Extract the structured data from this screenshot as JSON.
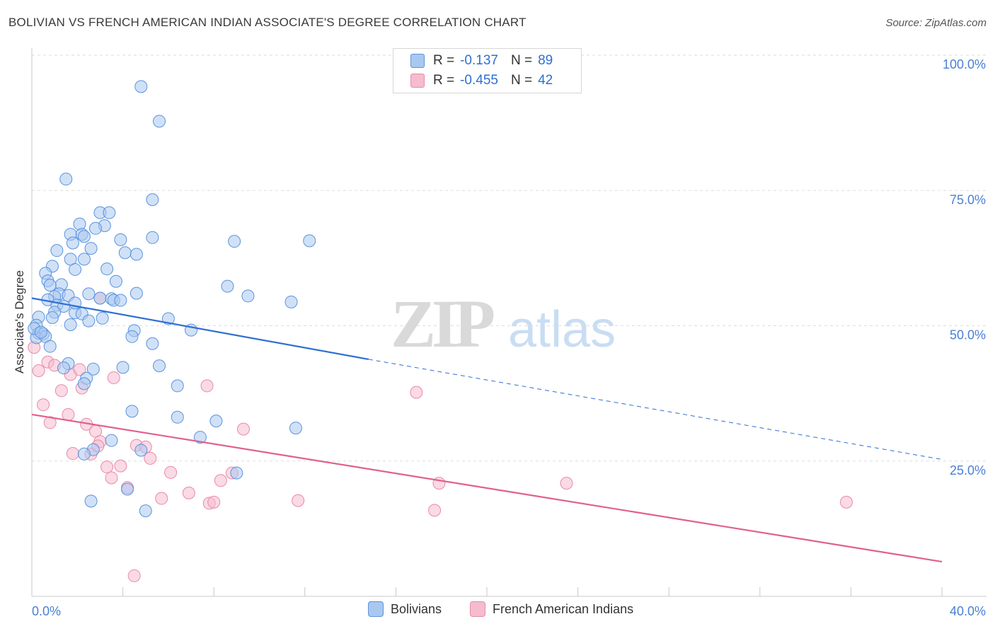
{
  "header": {
    "title": "BOLIVIAN VS FRENCH AMERICAN INDIAN ASSOCIATE'S DEGREE CORRELATION CHART",
    "source": "Source: ZipAtlas.com"
  },
  "watermark": {
    "zip": "ZIP",
    "atlas": "atlas"
  },
  "legend_top": {
    "rows": [
      {
        "r_label": "R =",
        "r_value": "-0.137",
        "n_label": "N =",
        "n_value": "89"
      },
      {
        "r_label": "R =",
        "r_value": "-0.455",
        "n_label": "N =",
        "n_value": "42"
      }
    ]
  },
  "legend_bottom": {
    "items": [
      "Bolivians",
      "French American Indians"
    ]
  },
  "colors": {
    "blue_fill": "#a9c8f0",
    "blue_stroke": "#5b93dd",
    "blue_line": "#2f6fd0",
    "pink_fill": "#f5bccd",
    "pink_stroke": "#e88aa8",
    "pink_line": "#e0608f",
    "tick_label": "#4a7fd4",
    "grid": "#dddddd"
  },
  "chart_data": {
    "type": "scatter",
    "title": "BOLIVIAN VS FRENCH AMERICAN INDIAN ASSOCIATE'S DEGREE CORRELATION CHART",
    "xlabel": "",
    "ylabel": "Associate's Degree",
    "xlim": [
      0,
      40
    ],
    "ylim": [
      0,
      100
    ],
    "x_tick_labels": [
      "0.0%",
      "40.0%"
    ],
    "y_ticks": [
      25,
      50,
      75,
      100
    ],
    "y_tick_labels": [
      "25.0%",
      "50.0%",
      "75.0%",
      "100.0%"
    ],
    "grid": true,
    "legend_position": "top-center",
    "series": [
      {
        "name": "Bolivians",
        "color": "#5b93dd",
        "trend": {
          "x": [
            0,
            14.8
          ],
          "y": [
            55.1,
            43.8
          ],
          "dashed_extension_to": [
            40,
            25.3
          ]
        },
        "points": [
          [
            4.8,
            94.2
          ],
          [
            5.6,
            87.8
          ],
          [
            1.5,
            77.1
          ],
          [
            5.3,
            73.3
          ],
          [
            3.0,
            70.9
          ],
          [
            3.4,
            70.9
          ],
          [
            2.1,
            68.8
          ],
          [
            3.2,
            68.5
          ],
          [
            2.8,
            68.0
          ],
          [
            1.7,
            66.9
          ],
          [
            2.2,
            66.9
          ],
          [
            2.3,
            66.5
          ],
          [
            3.9,
            65.9
          ],
          [
            5.3,
            66.3
          ],
          [
            8.9,
            65.6
          ],
          [
            12.2,
            65.7
          ],
          [
            1.8,
            65.3
          ],
          [
            2.6,
            64.3
          ],
          [
            1.1,
            63.9
          ],
          [
            4.1,
            63.5
          ],
          [
            4.6,
            63.2
          ],
          [
            1.7,
            62.3
          ],
          [
            2.3,
            62.3
          ],
          [
            0.9,
            61.0
          ],
          [
            1.9,
            60.4
          ],
          [
            3.3,
            60.5
          ],
          [
            0.6,
            59.7
          ],
          [
            0.7,
            58.3
          ],
          [
            3.7,
            58.2
          ],
          [
            8.6,
            57.3
          ],
          [
            1.3,
            57.6
          ],
          [
            0.8,
            57.5
          ],
          [
            1.2,
            55.9
          ],
          [
            1.0,
            55.4
          ],
          [
            1.6,
            55.6
          ],
          [
            2.5,
            55.9
          ],
          [
            4.6,
            56.0
          ],
          [
            9.5,
            55.5
          ],
          [
            11.4,
            54.4
          ],
          [
            3.0,
            55.1
          ],
          [
            3.5,
            55.0
          ],
          [
            3.6,
            54.7
          ],
          [
            3.9,
            54.7
          ],
          [
            0.7,
            54.8
          ],
          [
            1.1,
            53.8
          ],
          [
            1.4,
            53.6
          ],
          [
            1.0,
            52.5
          ],
          [
            1.9,
            52.4
          ],
          [
            2.2,
            52.2
          ],
          [
            0.3,
            51.6
          ],
          [
            0.9,
            51.5
          ],
          [
            3.1,
            51.4
          ],
          [
            6.0,
            51.3
          ],
          [
            2.5,
            50.9
          ],
          [
            0.2,
            50.1
          ],
          [
            1.7,
            50.2
          ],
          [
            4.5,
            49.1
          ],
          [
            7.0,
            49.2
          ],
          [
            0.3,
            48.6
          ],
          [
            0.5,
            48.5
          ],
          [
            0.2,
            47.8
          ],
          [
            0.6,
            48.0
          ],
          [
            4.4,
            48.0
          ],
          [
            5.3,
            46.7
          ],
          [
            0.8,
            46.2
          ],
          [
            1.6,
            43.0
          ],
          [
            1.4,
            42.2
          ],
          [
            2.7,
            42.0
          ],
          [
            4.0,
            42.3
          ],
          [
            5.6,
            42.6
          ],
          [
            2.4,
            40.3
          ],
          [
            2.3,
            39.3
          ],
          [
            6.4,
            38.9
          ],
          [
            4.4,
            34.2
          ],
          [
            6.4,
            33.1
          ],
          [
            8.1,
            32.4
          ],
          [
            11.6,
            31.1
          ],
          [
            7.4,
            29.4
          ],
          [
            3.5,
            28.8
          ],
          [
            2.7,
            27.1
          ],
          [
            4.8,
            27.0
          ],
          [
            2.3,
            26.3
          ],
          [
            9.0,
            22.8
          ],
          [
            4.2,
            19.8
          ],
          [
            2.6,
            17.6
          ],
          [
            5.0,
            15.8
          ],
          [
            0.1,
            49.5
          ],
          [
            0.4,
            48.8
          ],
          [
            1.9,
            54.2
          ]
        ]
      },
      {
        "name": "French American Indians",
        "color": "#e88aa8",
        "trend": {
          "x": [
            0,
            40
          ],
          "y": [
            33.6,
            6.4
          ]
        },
        "points": [
          [
            0.1,
            46.0
          ],
          [
            0.3,
            41.7
          ],
          [
            0.7,
            43.3
          ],
          [
            1.0,
            42.7
          ],
          [
            1.7,
            41.0
          ],
          [
            2.1,
            41.9
          ],
          [
            1.3,
            38.0
          ],
          [
            2.2,
            38.5
          ],
          [
            3.6,
            40.4
          ],
          [
            7.7,
            38.9
          ],
          [
            16.9,
            37.7
          ],
          [
            0.5,
            35.4
          ],
          [
            1.6,
            33.6
          ],
          [
            2.4,
            31.8
          ],
          [
            0.8,
            32.1
          ],
          [
            2.8,
            30.5
          ],
          [
            9.3,
            30.9
          ],
          [
            3.0,
            28.6
          ],
          [
            4.6,
            27.9
          ],
          [
            5.0,
            27.6
          ],
          [
            1.8,
            26.4
          ],
          [
            2.6,
            26.3
          ],
          [
            5.2,
            25.5
          ],
          [
            3.3,
            23.9
          ],
          [
            3.9,
            24.1
          ],
          [
            6.1,
            22.9
          ],
          [
            8.8,
            22.8
          ],
          [
            3.5,
            21.9
          ],
          [
            8.3,
            21.4
          ],
          [
            17.9,
            20.9
          ],
          [
            23.5,
            20.9
          ],
          [
            4.2,
            20.1
          ],
          [
            6.9,
            19.1
          ],
          [
            5.7,
            18.1
          ],
          [
            11.7,
            17.7
          ],
          [
            7.8,
            17.2
          ],
          [
            8.0,
            17.4
          ],
          [
            35.8,
            17.4
          ],
          [
            17.7,
            15.9
          ],
          [
            3.0,
            55.1
          ],
          [
            4.5,
            3.8
          ],
          [
            2.9,
            27.8
          ]
        ]
      }
    ]
  }
}
